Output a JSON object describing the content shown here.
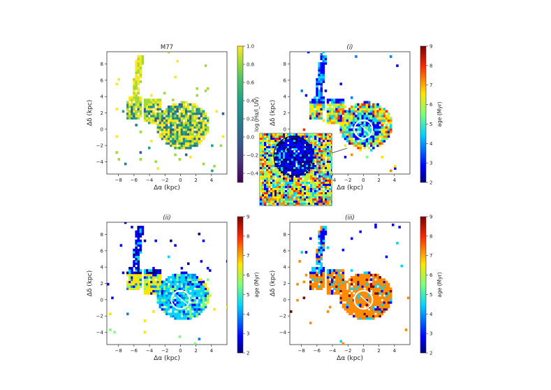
{
  "figure": {
    "panels": [
      {
        "id": "m77",
        "title": "M77",
        "title_italic": false,
        "colorbar": "viridis",
        "cb_label": "log (Hα/I_UV)",
        "cb_ticks": [
          "1.0",
          "0.8",
          "0.6",
          "0.4",
          "0.2",
          "0.0",
          "−0.2",
          "−0.4"
        ],
        "cb_tick_vals": [
          1.0,
          0.8,
          0.6,
          0.4,
          0.2,
          0.0,
          -0.2,
          -0.4
        ],
        "cb_range": [
          -0.5,
          1.0
        ],
        "ring": false,
        "mode": "m77"
      },
      {
        "id": "i",
        "title": "(i)",
        "title_italic": true,
        "colorbar": "jet",
        "cb_label": "age (Myr)",
        "cb_ticks": [
          "9",
          "8",
          "7",
          "6",
          "5",
          "4",
          "3",
          "2"
        ],
        "cb_tick_vals": [
          9,
          8,
          7,
          6,
          5,
          4,
          3,
          2
        ],
        "cb_range": [
          2,
          9
        ],
        "ring": true,
        "mode": "mixed"
      },
      {
        "id": "ii",
        "title": "(ii)",
        "title_italic": true,
        "colorbar": "jet",
        "cb_label": "age (Myr)",
        "cb_ticks": [
          "9",
          "8",
          "7",
          "6",
          "5",
          "4",
          "3",
          "2"
        ],
        "cb_tick_vals": [
          9,
          8,
          7,
          6,
          5,
          4,
          3,
          2
        ],
        "cb_range": [
          2,
          9
        ],
        "ring": true,
        "mode": "cyan"
      },
      {
        "id": "iii",
        "title": "(iii)",
        "title_italic": true,
        "colorbar": "jet",
        "cb_label": "age (Myr)",
        "cb_ticks": [
          "9",
          "8",
          "7",
          "6",
          "5",
          "4",
          "3",
          "2"
        ],
        "cb_tick_vals": [
          9,
          8,
          7,
          6,
          5,
          4,
          3,
          2
        ],
        "cb_range": [
          2,
          9
        ],
        "ring": true,
        "mode": "orange"
      }
    ],
    "x_ticks": [
      "−8",
      "−6",
      "−4",
      "−2",
      "0",
      "2",
      "4"
    ],
    "y_ticks": [
      "8",
      "6",
      "4",
      "2",
      "0",
      "−2",
      "−4"
    ],
    "xlabel": "Δα (kpc)",
    "ylabel": "Δδ (kpc)"
  },
  "chart_data": [
    {
      "type": "heatmap",
      "title": "M77",
      "xlabel": "Δα (kpc)",
      "ylabel": "Δδ (kpc)",
      "xlim": [
        -9.5,
        6
      ],
      "ylim": [
        -5.5,
        9.5
      ],
      "colorbar_label": "log (Hα/I_UV)",
      "colorbar_range": [
        -0.5,
        1.0
      ],
      "colormap": "viridis"
    },
    {
      "type": "heatmap",
      "title": "(i)",
      "xlabel": "Δα (kpc)",
      "ylabel": "Δδ (kpc)",
      "xlim": [
        -9.5,
        6
      ],
      "ylim": [
        -5.5,
        9.5
      ],
      "colorbar_label": "age (Myr)",
      "colorbar_range": [
        2,
        9
      ],
      "colormap": "jet",
      "inset_zoom": true
    },
    {
      "type": "heatmap",
      "title": "(ii)",
      "xlabel": "Δα (kpc)",
      "ylabel": "Δδ (kpc)",
      "xlim": [
        -9.5,
        6
      ],
      "ylim": [
        -5.5,
        9.5
      ],
      "colorbar_label": "age (Myr)",
      "colorbar_range": [
        2,
        9
      ],
      "colormap": "jet"
    },
    {
      "type": "heatmap",
      "title": "(iii)",
      "xlabel": "Δα (kpc)",
      "ylabel": "Δδ (kpc)",
      "xlim": [
        -9.5,
        6
      ],
      "ylim": [
        -5.5,
        9.5
      ],
      "colorbar_label": "age (Myr)",
      "colorbar_range": [
        2,
        9
      ],
      "colormap": "jet"
    }
  ]
}
